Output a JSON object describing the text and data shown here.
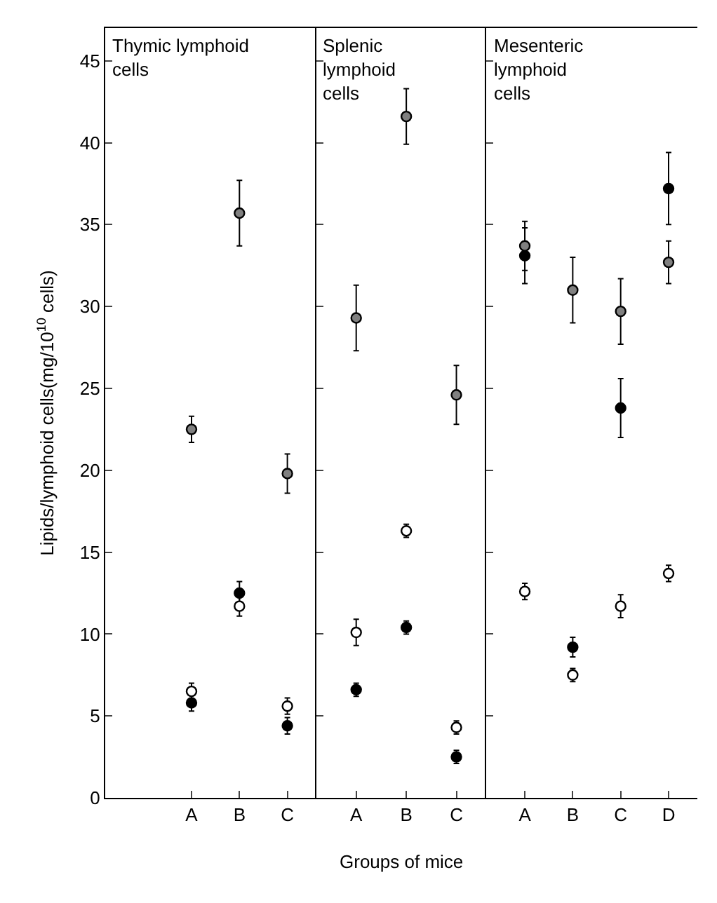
{
  "chart_data": [
    {
      "type": "scatter",
      "title": "Thymic lymphoid\ncells",
      "ylabel": "Lipids/lymphoid cells(mg/10$^{10}$ cells)",
      "categories": [
        "A",
        "B",
        "C"
      ],
      "ylim": [
        0,
        47
      ],
      "yticks": [
        0,
        5,
        10,
        15,
        20,
        25,
        30,
        35,
        40,
        45
      ],
      "marker": "circle",
      "series": [
        {
          "color": "#000000",
          "values": [
            5.8,
            12.5,
            4.4
          ],
          "errors": [
            0.5,
            0.7,
            0.5
          ]
        },
        {
          "color": "#ffffff",
          "values": [
            6.5,
            11.7,
            5.6
          ],
          "errors": [
            0.5,
            0.6,
            0.5
          ]
        },
        {
          "color": "#808080",
          "values": [
            22.5,
            35.7,
            19.8
          ],
          "errors": [
            0.8,
            2.0,
            1.2
          ]
        }
      ]
    },
    {
      "type": "scatter",
      "title": "Splenic\nlymphoid\ncells",
      "xlabel": "Groups of mice",
      "categories": [
        "A",
        "B",
        "C"
      ],
      "ylim": [
        0,
        47
      ],
      "tick_labels": "x",
      "marker": "circle",
      "series": [
        {
          "color": "#000000",
          "values": [
            6.6,
            10.4,
            2.5
          ],
          "errors": [
            0.4,
            0.4,
            0.4
          ]
        },
        {
          "color": "#ffffff",
          "values": [
            10.1,
            16.3,
            4.3
          ],
          "errors": [
            0.8,
            0.4,
            0.4
          ]
        },
        {
          "color": "#808080",
          "values": [
            29.3,
            41.6,
            24.6
          ],
          "errors": [
            2.0,
            1.7,
            1.8
          ]
        }
      ]
    },
    {
      "type": "scatter",
      "title": "Mesenteric\nlymphoid\ncells",
      "categories": [
        "A",
        "B",
        "C",
        "D"
      ],
      "ylim": [
        0,
        47
      ],
      "tick_labels": "x",
      "marker": "circle",
      "series": [
        {
          "color": "#000000",
          "values": [
            33.1,
            9.2,
            23.8,
            37.2
          ],
          "errors": [
            1.7,
            0.6,
            1.8,
            2.2
          ]
        },
        {
          "color": "#ffffff",
          "values": [
            12.6,
            7.5,
            11.7,
            13.7
          ],
          "errors": [
            0.5,
            0.4,
            0.7,
            0.5
          ]
        },
        {
          "color": "#808080",
          "values": [
            33.7,
            31.0,
            29.7,
            32.7
          ],
          "errors": [
            1.5,
            2.0,
            2.0,
            1.3
          ]
        }
      ]
    }
  ]
}
